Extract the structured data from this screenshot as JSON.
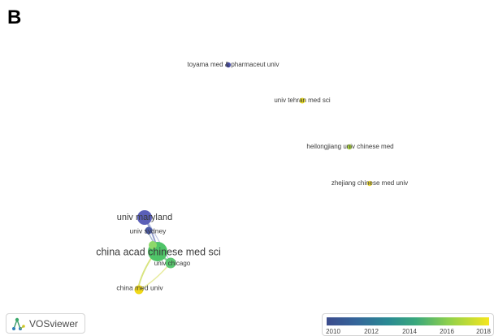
{
  "panel_label": "B",
  "nodes": [
    {
      "id": "toyama",
      "label": "toyama med & pharmaceut univ",
      "color": "#4a4fa8",
      "size": "s"
    },
    {
      "id": "tehran",
      "label": "univ tehran med sci",
      "color": "#e8dc22",
      "size": "s"
    },
    {
      "id": "heilongjiang",
      "label": "heilongjiang univ chinese med",
      "color": "#a8d040",
      "size": "s"
    },
    {
      "id": "zhejiang",
      "label": "zhejiang chinese med univ",
      "color": "#f0dc3a",
      "size": "s"
    },
    {
      "id": "maryland",
      "label": "univ maryland",
      "color": "#5a5fb8",
      "size": "m"
    },
    {
      "id": "sydney",
      "label": "univ sydney",
      "color": "#4a5aa8",
      "size": "s"
    },
    {
      "id": "cacms",
      "label": "china acad chinese med sci",
      "color": "#4fc468",
      "size": "l"
    },
    {
      "id": "chicago",
      "label": "univ chicago",
      "color": "#5ac870",
      "size": "s"
    },
    {
      "id": "cmu",
      "label": "china med univ",
      "color": "#f0d818",
      "size": "s"
    }
  ],
  "logo": {
    "text": "VOSviewer"
  },
  "legend": {
    "ticks": [
      "2010",
      "2012",
      "2014",
      "2016",
      "2018"
    ],
    "colors": [
      "#3b4b8c",
      "#35659a",
      "#2a8a93",
      "#3aa87c",
      "#8ed04c",
      "#f5e61e"
    ]
  }
}
